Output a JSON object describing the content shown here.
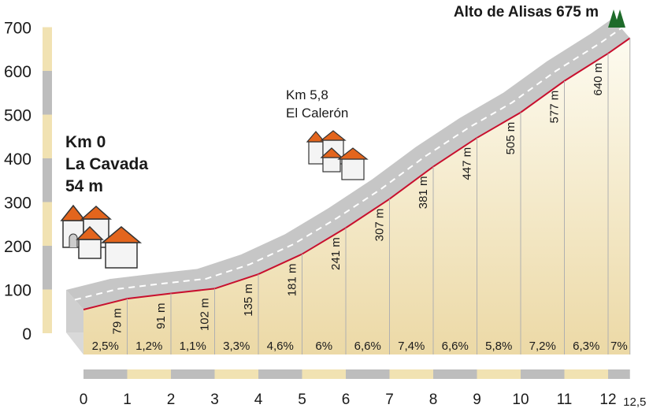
{
  "chart_data": {
    "type": "area",
    "title": "Alto de Alisas 675 m",
    "start_label": [
      "Km 0",
      "La Cavada",
      "54 m"
    ],
    "mid_label": [
      "Km 5,8",
      "El Calerón"
    ],
    "xlabel": "",
    "ylabel": "",
    "ylim": [
      0,
      700
    ],
    "xlim": [
      0,
      12.5
    ],
    "y_ticks": [
      "0",
      "100",
      "200",
      "300",
      "400",
      "500",
      "600",
      "700"
    ],
    "x_ticks": [
      "0",
      "1",
      "2",
      "3",
      "4",
      "5",
      "6",
      "7",
      "8",
      "9",
      "10",
      "11",
      "12",
      "12,5"
    ],
    "x_tick_values": [
      0,
      1,
      2,
      3,
      4,
      5,
      6,
      7,
      8,
      9,
      10,
      11,
      12,
      12.5
    ],
    "profile": {
      "x": [
        0,
        1,
        2,
        3,
        4,
        5,
        6,
        7,
        8,
        9,
        10,
        11,
        12,
        12.5
      ],
      "y": [
        54,
        79,
        91,
        102,
        135,
        181,
        241,
        307,
        381,
        447,
        505,
        577,
        640,
        675
      ]
    },
    "elevation_labels": [
      "79 m",
      "91 m",
      "102 m",
      "135 m",
      "181 m",
      "241 m",
      "307 m",
      "381 m",
      "447 m",
      "505 m",
      "577 m",
      "640 m"
    ],
    "gradients": [
      "2,5%",
      "1,2%",
      "1,1%",
      "3,3%",
      "4,6%",
      "6%",
      "6,6%",
      "7,4%",
      "6,6%",
      "5,8%",
      "7,2%",
      "6,3%",
      "7%"
    ],
    "colors": {
      "profile_line": "#c8102e",
      "road": "#c6c6c6",
      "road_dash": "#ffffff",
      "fill_top": "#fbf8e8",
      "fill_bottom": "#ecd9a6",
      "axis_bar_a": "#f1e2b2",
      "axis_bar_b": "#bdbdbd",
      "summit_icon": "#1e6b2a",
      "house_roof": "#e3651d"
    },
    "grid": false,
    "icons": [
      "village-icon",
      "village-icon",
      "summit-trees-icon"
    ]
  }
}
